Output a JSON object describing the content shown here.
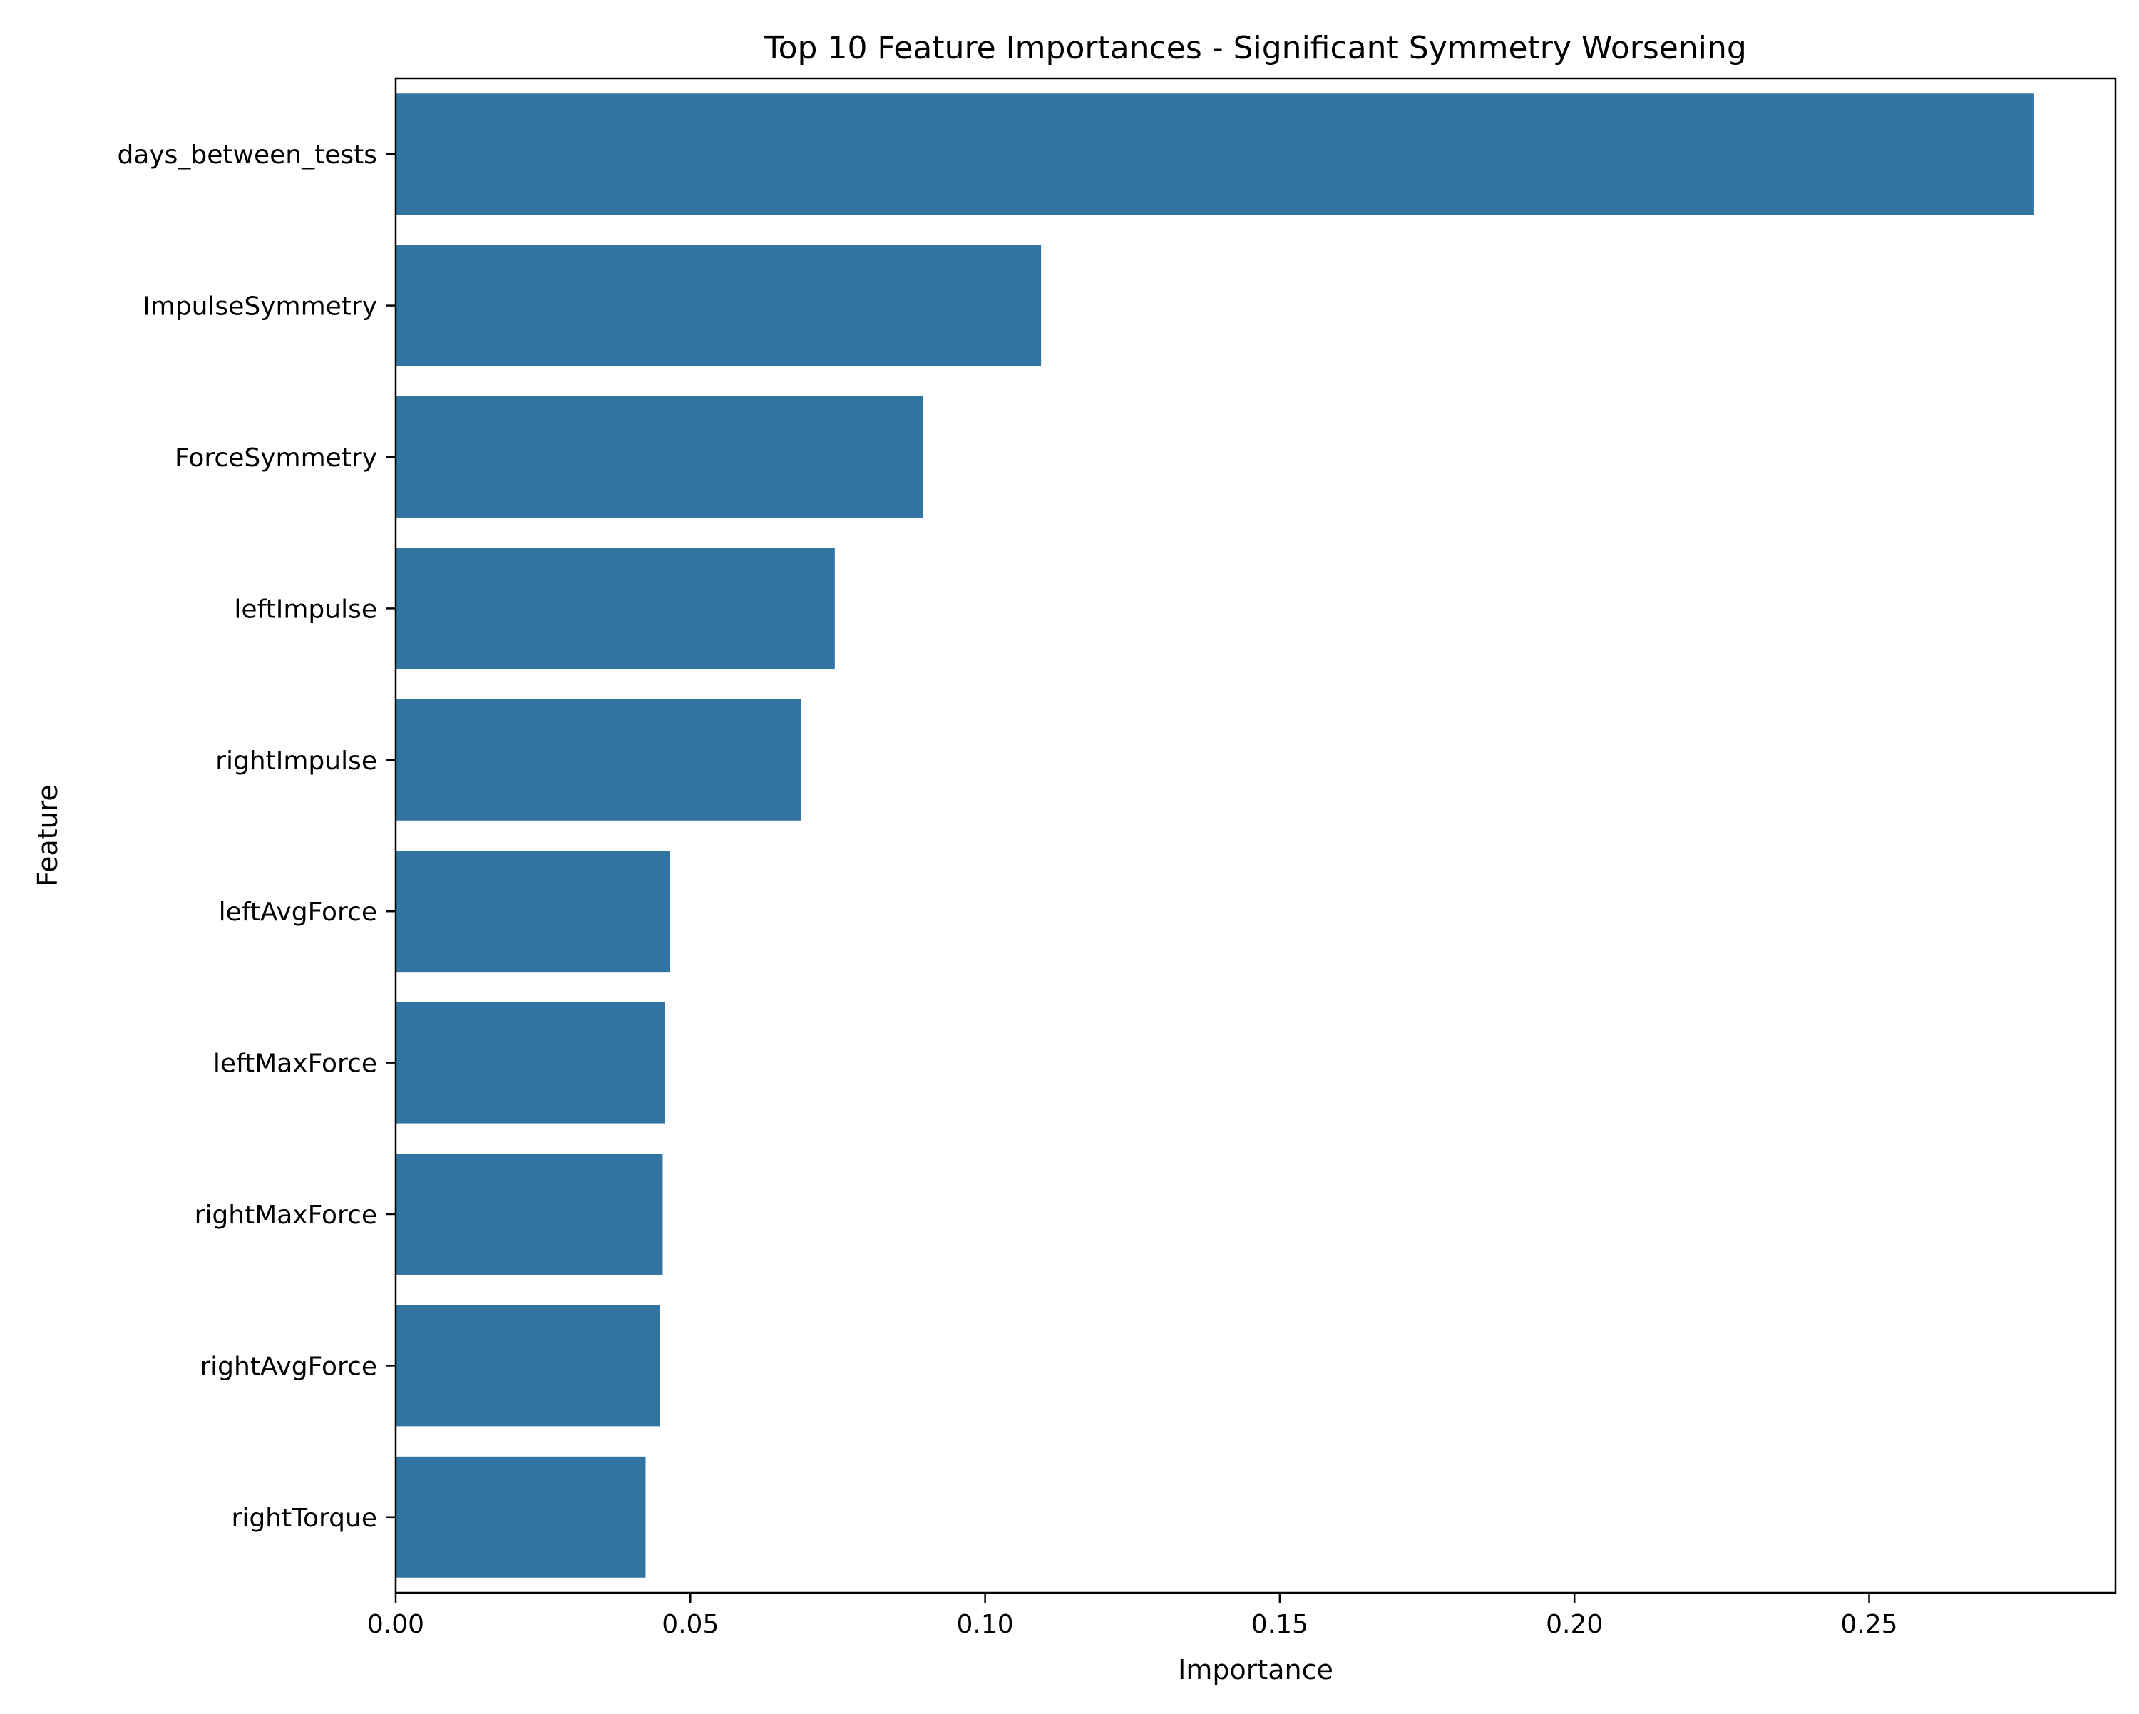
{
  "chart_data": {
    "type": "bar",
    "orientation": "horizontal",
    "title": "Top 10 Feature Importances - Significant Symmetry Worsening",
    "xlabel": "Importance",
    "ylabel": "Feature",
    "categories": [
      "days_between_tests",
      "ImpulseSymmetry",
      "ForceSymmetry",
      "leftImpulse",
      "rightImpulse",
      "leftAvgForce",
      "leftMaxForce",
      "rightMaxForce",
      "rightAvgForce",
      "rightTorque"
    ],
    "values": [
      0.278,
      0.1095,
      0.0895,
      0.0745,
      0.0688,
      0.0465,
      0.0457,
      0.0453,
      0.0448,
      0.0424
    ],
    "xlim": [
      0,
      0.2918
    ],
    "xticks": [
      0.0,
      0.05,
      0.1,
      0.15,
      0.2,
      0.25
    ],
    "xtick_labels": [
      "0.00",
      "0.05",
      "0.10",
      "0.15",
      "0.20",
      "0.25"
    ],
    "grid": false,
    "legend": "none",
    "bar_color": "#3274a1"
  }
}
